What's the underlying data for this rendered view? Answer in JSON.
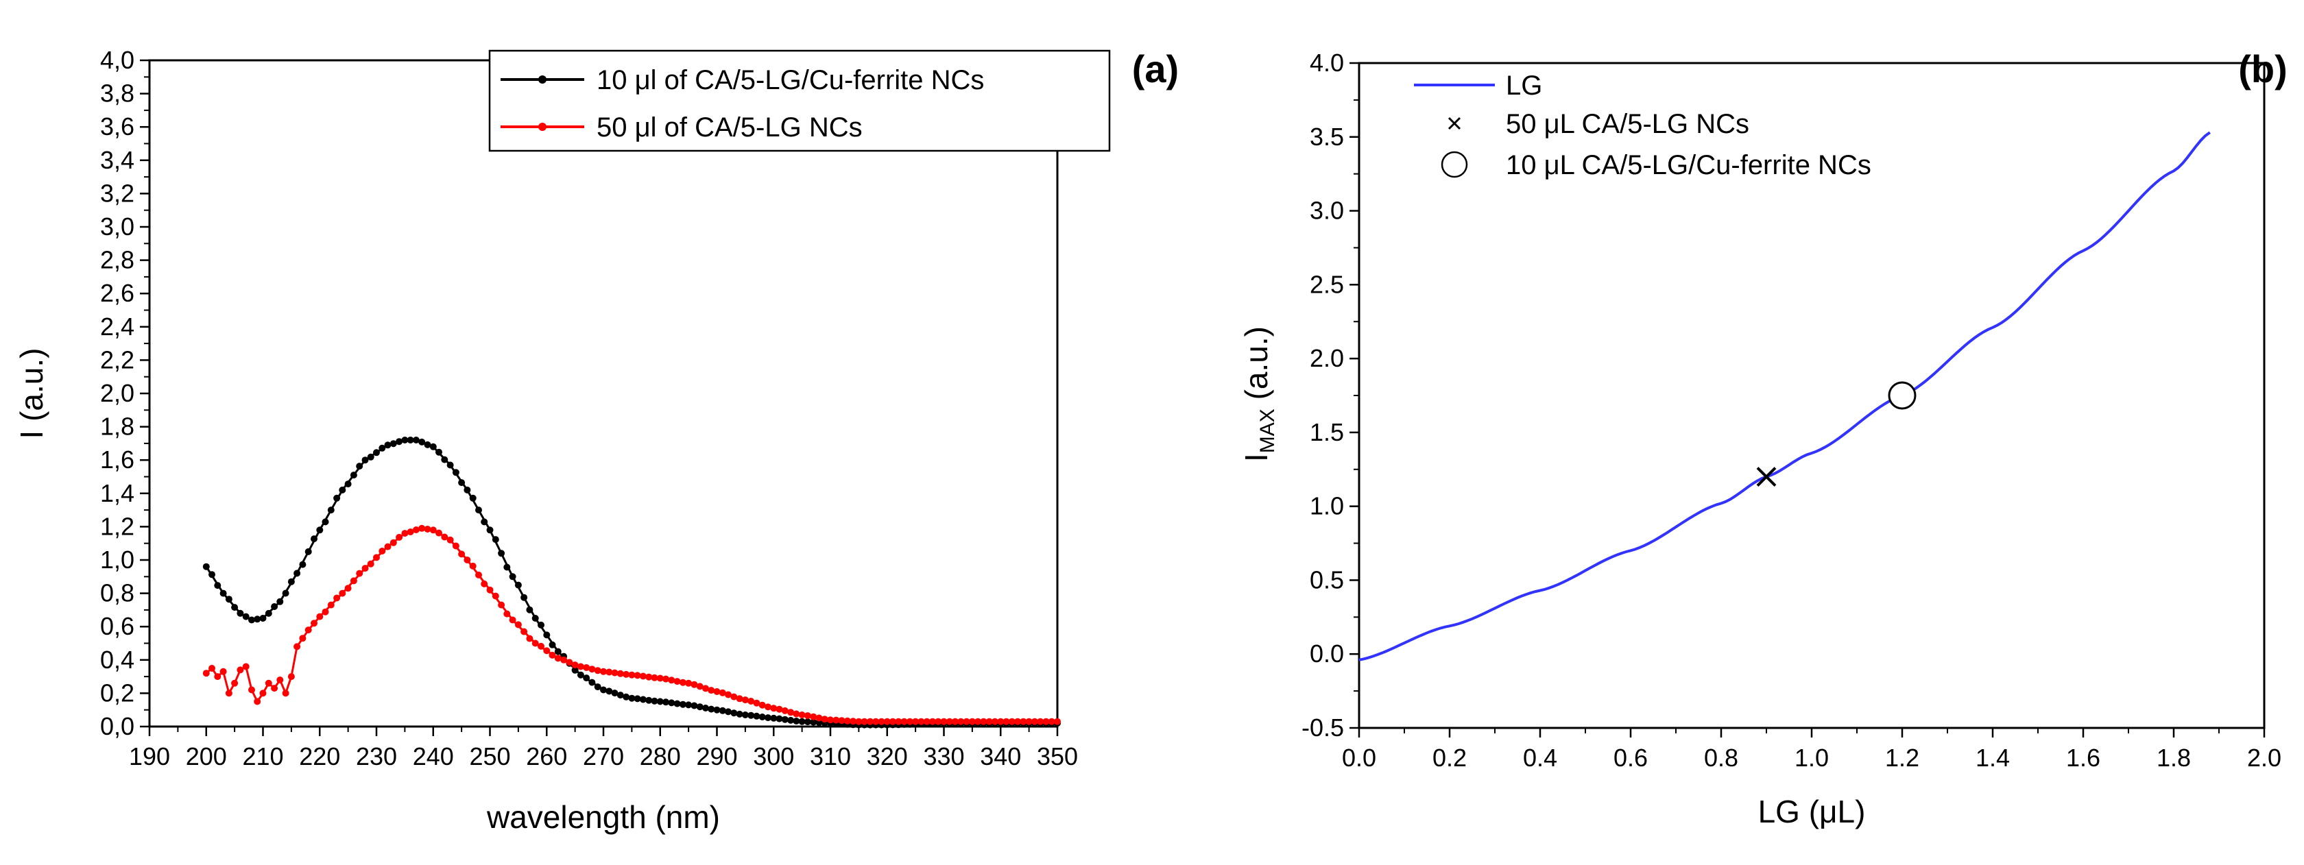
{
  "chart_data": [
    {
      "id": "a",
      "panel_label": "(a)",
      "type": "line",
      "xlabel": "wavelength (nm)",
      "ylabel": "I (a.u.)",
      "xlim": [
        190,
        350
      ],
      "ylim": [
        0.0,
        4.0
      ],
      "xticks": [
        190,
        200,
        210,
        220,
        230,
        240,
        250,
        260,
        270,
        280,
        290,
        300,
        310,
        320,
        330,
        340,
        350
      ],
      "xtick_labels": [
        "190",
        "200",
        "210",
        "220",
        "230",
        "240",
        "250",
        "260",
        "270",
        "280",
        "290",
        "300",
        "310",
        "320",
        "330",
        "340",
        "350"
      ],
      "yticks": [
        0.0,
        0.2,
        0.4,
        0.6,
        0.8,
        1.0,
        1.2,
        1.4,
        1.6,
        1.8,
        2.0,
        2.2,
        2.4,
        2.6,
        2.8,
        3.0,
        3.2,
        3.4,
        3.6,
        3.8,
        4.0
      ],
      "ytick_labels": [
        "0,0",
        "0,2",
        "0,4",
        "0,6",
        "0,8",
        "1,0",
        "1,2",
        "1,4",
        "1,6",
        "1,8",
        "2,0",
        "2,2",
        "2,4",
        "2,6",
        "2,8",
        "3,0",
        "3,2",
        "3,4",
        "3,6",
        "3,8",
        "4,0"
      ],
      "legend_position": "top-right",
      "series": [
        {
          "name": "10 μl of CA/5-LG/Cu-ferrite NCs",
          "color": "#000000",
          "x": [
            200,
            203,
            206,
            208,
            210,
            213,
            216,
            220,
            224,
            228,
            232,
            235,
            237,
            240,
            243,
            246,
            250,
            254,
            258,
            262,
            266,
            270,
            275,
            280,
            285,
            290,
            295,
            300,
            305,
            310,
            315,
            320,
            330,
            340,
            350
          ],
          "y": [
            0.96,
            0.8,
            0.68,
            0.64,
            0.65,
            0.75,
            0.92,
            1.18,
            1.42,
            1.6,
            1.69,
            1.72,
            1.72,
            1.68,
            1.57,
            1.42,
            1.18,
            0.9,
            0.65,
            0.45,
            0.31,
            0.22,
            0.17,
            0.15,
            0.13,
            0.1,
            0.07,
            0.05,
            0.03,
            0.02,
            0.01,
            0.01,
            0.02,
            0.02,
            0.02
          ]
        },
        {
          "name": "50 μl of CA/5-LG NCs",
          "color": "#ff0000",
          "x": [
            200,
            201,
            202,
            203,
            204,
            205,
            206,
            207,
            208,
            209,
            210,
            211,
            212,
            213,
            214,
            215,
            216,
            218,
            220,
            224,
            228,
            232,
            235,
            238,
            240,
            243,
            246,
            250,
            254,
            258,
            262,
            266,
            270,
            275,
            280,
            285,
            290,
            295,
            300,
            305,
            310,
            315,
            320,
            330,
            340,
            350
          ],
          "y": [
            0.32,
            0.35,
            0.3,
            0.33,
            0.2,
            0.26,
            0.34,
            0.36,
            0.22,
            0.15,
            0.2,
            0.26,
            0.23,
            0.28,
            0.2,
            0.3,
            0.48,
            0.58,
            0.66,
            0.8,
            0.95,
            1.08,
            1.16,
            1.19,
            1.18,
            1.12,
            1.0,
            0.82,
            0.64,
            0.5,
            0.41,
            0.36,
            0.33,
            0.31,
            0.29,
            0.26,
            0.21,
            0.16,
            0.11,
            0.07,
            0.04,
            0.03,
            0.03,
            0.03,
            0.03,
            0.03
          ]
        }
      ]
    },
    {
      "id": "b",
      "panel_label": "(b)",
      "type": "line",
      "xlabel": "LG (μL)",
      "ylabel_main": "I",
      "ylabel_sub": "MAX",
      "ylabel_unit": " (a.u.)",
      "xlim": [
        0.0,
        2.0
      ],
      "ylim": [
        -0.5,
        4.0
      ],
      "xticks": [
        0.0,
        0.2,
        0.4,
        0.6,
        0.8,
        1.0,
        1.2,
        1.4,
        1.6,
        1.8,
        2.0
      ],
      "xtick_labels": [
        "0.0",
        "0.2",
        "0.4",
        "0.6",
        "0.8",
        "1.0",
        "1.2",
        "1.4",
        "1.6",
        "1.8",
        "2.0"
      ],
      "yticks": [
        -0.5,
        0.0,
        0.5,
        1.0,
        1.5,
        2.0,
        2.5,
        3.0,
        3.5,
        4.0
      ],
      "ytick_labels": [
        "-0.5",
        "0.0",
        "0.5",
        "1.0",
        "1.5",
        "2.0",
        "2.5",
        "3.0",
        "3.5",
        "4.0"
      ],
      "legend_position": "top-left",
      "series": [
        {
          "name": "LG",
          "color": "#3333ff",
          "kind": "line",
          "x": [
            0.0,
            0.2,
            0.4,
            0.6,
            0.8,
            0.9,
            1.0,
            1.2,
            1.4,
            1.6,
            1.8,
            1.88
          ],
          "y": [
            -0.04,
            0.19,
            0.43,
            0.7,
            1.02,
            1.2,
            1.36,
            1.75,
            2.21,
            2.73,
            3.27,
            3.53
          ]
        },
        {
          "name": "50 μL CA/5-LG NCs",
          "kind": "marker-x",
          "x": [
            0.9
          ],
          "y": [
            1.2
          ]
        },
        {
          "name": "10 μL CA/5-LG/Cu-ferrite NCs",
          "kind": "marker-circle",
          "x": [
            1.2
          ],
          "y": [
            1.75
          ]
        }
      ]
    }
  ]
}
